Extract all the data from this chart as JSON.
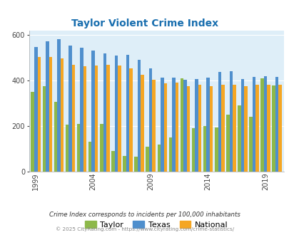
{
  "title": "Taylor Violent Crime Index",
  "title_color": "#1a6faf",
  "taylor_vals": [
    350,
    375,
    307,
    205,
    210,
    130,
    210,
    90,
    70,
    65,
    110,
    120,
    150,
    410,
    190,
    200,
    195,
    250,
    290,
    240,
    410,
    380
  ],
  "texas_vals": [
    548,
    572,
    583,
    555,
    543,
    533,
    520,
    510,
    513,
    492,
    453,
    413,
    412,
    403,
    408,
    412,
    438,
    442,
    408,
    416,
    420,
    415
  ],
  "national_vals": [
    505,
    503,
    499,
    468,
    463,
    465,
    469,
    465,
    455,
    427,
    403,
    388,
    390,
    374,
    381,
    374,
    382,
    383,
    375,
    383,
    383,
    383
  ],
  "plot_years": [
    1999,
    2000,
    2001,
    2002,
    2003,
    2004,
    2005,
    2006,
    2007,
    2008,
    2009,
    2010,
    2011,
    2012,
    2013,
    2014,
    2015,
    2016,
    2017,
    2018,
    2019,
    2020
  ],
  "taylor_color": "#8db84a",
  "texas_color": "#4f8fcd",
  "national_color": "#f5a623",
  "plot_bg": "#deeef8",
  "ylim": [
    0,
    620
  ],
  "yticks": [
    0,
    200,
    400,
    600
  ],
  "xtick_years": [
    1999,
    2004,
    2009,
    2014,
    2019
  ],
  "footnote1": "Crime Index corresponds to incidents per 100,000 inhabitants",
  "footnote2": "© 2025 CityRating.com - https://www.cityrating.com/crime-statistics/",
  "footnote1_color": "#333333",
  "footnote2_color": "#888888",
  "bar_width": 0.28
}
